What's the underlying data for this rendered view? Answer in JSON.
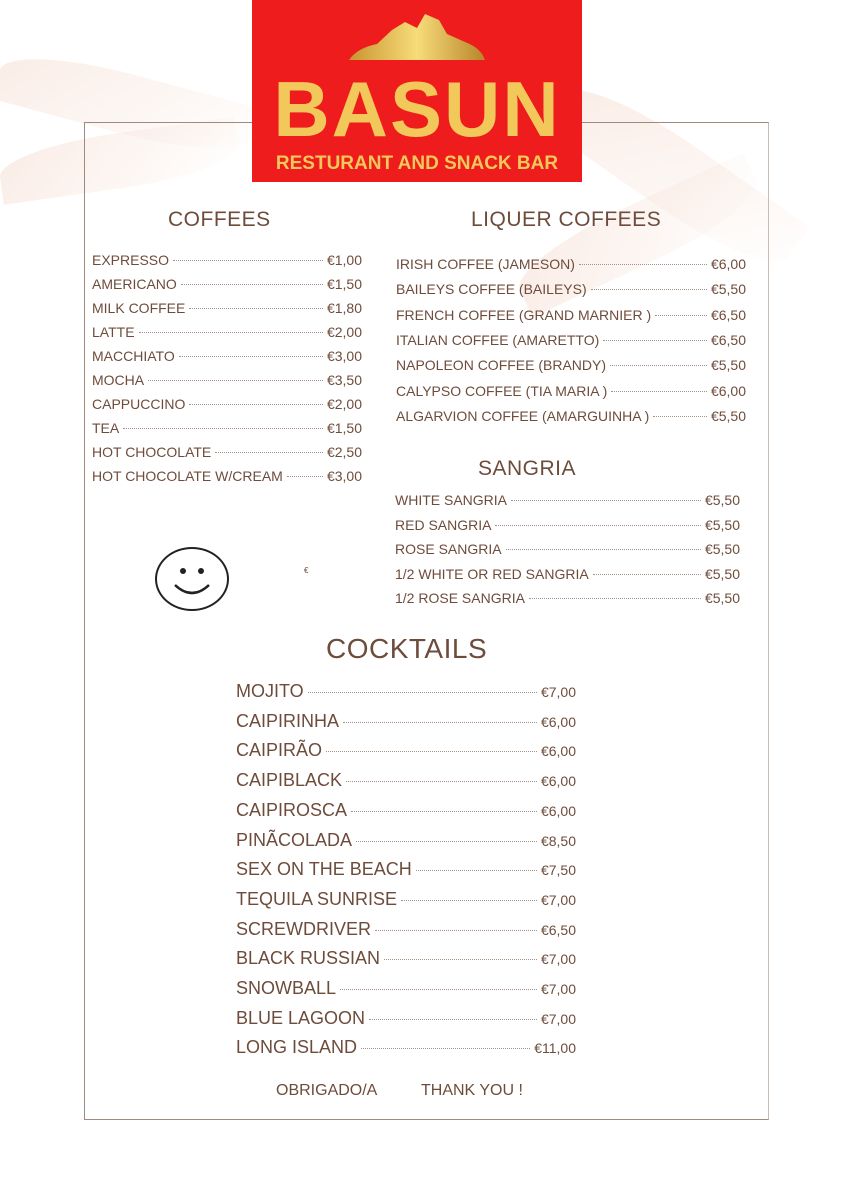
{
  "logo": {
    "name": "BASUN",
    "subtitle": "RESTURANT AND SNACK BAR",
    "colors": {
      "background": "#ee1c1c",
      "gold": "#f2c85a"
    }
  },
  "coffees": {
    "title": "COFFEES",
    "items": [
      {
        "name": "EXPRESSO",
        "price": "€1,00"
      },
      {
        "name": "AMERICANO",
        "price": "€1,50"
      },
      {
        "name": "MILK COFFEE",
        "price": "€1,80"
      },
      {
        "name": "LATTE",
        "price": "€2,00"
      },
      {
        "name": "MACCHIATO",
        "price": "€3,00"
      },
      {
        "name": "MOCHA",
        "price": "€3,50"
      },
      {
        "name": "CAPPUCCINO",
        "price": "€2,00"
      },
      {
        "name": "TEA",
        "price": "€1,50"
      },
      {
        "name": "HOT CHOCOLATE",
        "price": "€2,50"
      },
      {
        "name": "HOT CHOCOLATE W/CREAM",
        "price": "€3,00"
      }
    ]
  },
  "liqueur": {
    "title": "LIQUER COFFEES",
    "items": [
      {
        "name": "IRISH COFFEE (JAMESON)",
        "price": "€6,00"
      },
      {
        "name": "BAILEYS COFFEE (BAILEYS)",
        "price": "€5,50"
      },
      {
        "name": "FRENCH COFFEE (GRAND MARNIER )",
        "price": "€6,50"
      },
      {
        "name": "ITALIAN  COFFEE (AMARETTO)",
        "price": "€6,50"
      },
      {
        "name": "NAPOLEON COFFEE (BRANDY)",
        "price": "€5,50"
      },
      {
        "name": "CALYPSO COFFEE (TIA MARIA )",
        "price": "€6,00"
      },
      {
        "name": "ALGARVION COFFEE (AMARGUINHA )",
        "price": "€5,50"
      }
    ]
  },
  "sangria": {
    "title": "SANGRIA",
    "items": [
      {
        "name": "WHITE SANGRIA",
        "price": "€5,50"
      },
      {
        "name": "RED  SANGRIA",
        "price": "€5,50"
      },
      {
        "name": "ROSE SANGRIA",
        "price": "€5,50"
      },
      {
        "name": "1/2 WHITE OR RED SANGRIA",
        "price": "€5,50"
      },
      {
        "name": "1/2 ROSE SANGRIA",
        "price": "€5,50"
      }
    ]
  },
  "stray_euro": "€",
  "cocktails": {
    "title": "COCKTAILS",
    "items": [
      {
        "name": "MOJITO",
        "price": "€7,00"
      },
      {
        "name": "CAIPIRINHA",
        "price": "€6,00"
      },
      {
        "name": "CAIPIRÃO",
        "price": "€6,00"
      },
      {
        "name": "CAIPIBLACK",
        "price": "€6,00"
      },
      {
        "name": "CAIPIROSCA",
        "price": "€6,00"
      },
      {
        "name": "PINÃCOLADA",
        "price": "€8,50"
      },
      {
        "name": "SEX ON THE BEACH",
        "price": "€7,50"
      },
      {
        "name": "TEQUILA SUNRISE",
        "price": "€7,00"
      },
      {
        "name": "SCREWDRIVER",
        "price": "€6,50"
      },
      {
        "name": "BLACK RUSSIAN",
        "price": "€7,00"
      },
      {
        "name": "SNOWBALL",
        "price": "€7,00"
      },
      {
        "name": "BLUE LAGOON",
        "price": "€7,00"
      },
      {
        "name": "LONG ISLAND",
        "price": "€11,00"
      }
    ]
  },
  "footer": {
    "pt": "OBRIGADO/A",
    "en": "THANK YOU !"
  },
  "icons": {
    "smiley": "smiley-face-icon",
    "mountain": "mountain-logo-icon"
  }
}
